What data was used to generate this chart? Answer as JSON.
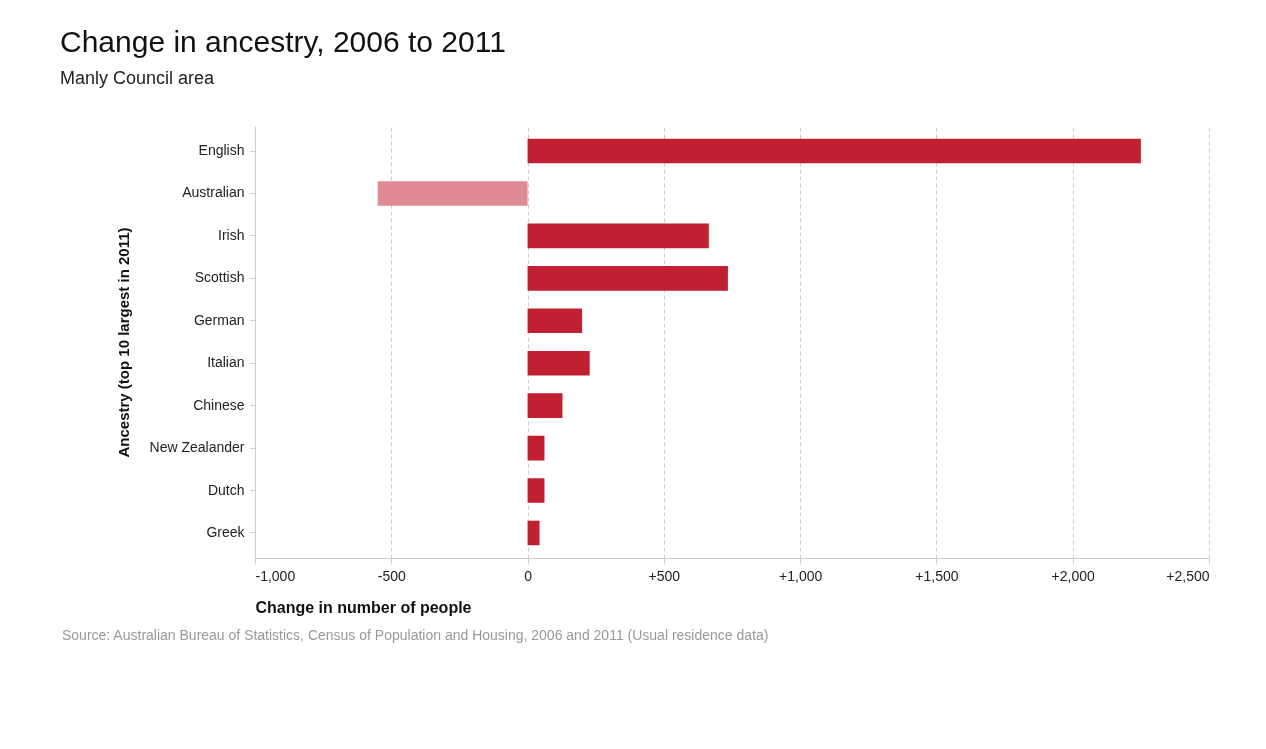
{
  "chart_data": {
    "type": "bar",
    "orientation": "horizontal",
    "title": "Change in ancestry, 2006 to 2011",
    "subtitle": "Manly Council area",
    "xlabel": "Change in number of people",
    "ylabel": "Ancestry (top 10 largest in 2011)",
    "categories": [
      "English",
      "Australian",
      "Irish",
      "Scottish",
      "German",
      "Italian",
      "Chinese",
      "New Zealander",
      "Dutch",
      "Greek"
    ],
    "values": [
      2250,
      -550,
      665,
      735,
      200,
      228,
      128,
      62,
      62,
      44
    ],
    "colors": [
      "#c0202f",
      "#e08a96",
      "#c0202f",
      "#c0202f",
      "#c0202f",
      "#c0202f",
      "#c0202f",
      "#c0202f",
      "#c0202f",
      "#c0202f"
    ],
    "xlim": [
      -1000,
      2500
    ],
    "xticks": [
      {
        "value": -1000,
        "label": "-1,000"
      },
      -500,
      0,
      {
        "value": 500,
        "label": "+500"
      },
      {
        "value": 1000,
        "label": "+1,000"
      },
      {
        "value": 1500,
        "label": "+1,500"
      },
      {
        "value": 2000,
        "label": "+2,000"
      },
      {
        "value": 2500,
        "label": "+2,500"
      }
    ],
    "grid": "x",
    "annotations": [
      "Source: Australian Bureau of Statistics, Census of Population and Housing, 2006 and 2011 (Usual residence data)"
    ]
  }
}
